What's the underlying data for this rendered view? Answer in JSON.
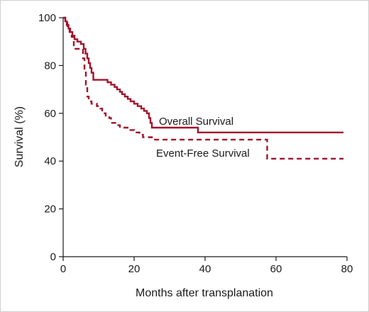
{
  "chart_data": {
    "type": "line",
    "title": "",
    "xlabel": "Months after transplanation",
    "ylabel": "Survival (%)",
    "xlim": [
      0,
      80
    ],
    "ylim": [
      0,
      100
    ],
    "xticks": [
      0,
      20,
      40,
      60,
      80
    ],
    "yticks": [
      0,
      20,
      40,
      60,
      80,
      100
    ],
    "grid": false,
    "legend": "none",
    "series": [
      {
        "name": "Overall Survival",
        "style": "solid",
        "color": "#a0142c",
        "points": [
          [
            0,
            100
          ],
          [
            0.6,
            98.5
          ],
          [
            1.0,
            97
          ],
          [
            1.5,
            95.5
          ],
          [
            2.0,
            94
          ],
          [
            2.6,
            92.5
          ],
          [
            3.2,
            91
          ],
          [
            4.0,
            90
          ],
          [
            5.0,
            89
          ],
          [
            5.8,
            87
          ],
          [
            6.3,
            85
          ],
          [
            6.8,
            83
          ],
          [
            7.2,
            81
          ],
          [
            7.6,
            79
          ],
          [
            8.0,
            77
          ],
          [
            8.5,
            74
          ],
          [
            12.0,
            74
          ],
          [
            12.5,
            73
          ],
          [
            13.5,
            72
          ],
          [
            14.5,
            71
          ],
          [
            15.2,
            70
          ],
          [
            16.0,
            69
          ],
          [
            16.6,
            68
          ],
          [
            17.4,
            67
          ],
          [
            18.2,
            66
          ],
          [
            19.0,
            65
          ],
          [
            20.0,
            64
          ],
          [
            21.0,
            63
          ],
          [
            22.0,
            62
          ],
          [
            22.8,
            61
          ],
          [
            23.6,
            60
          ],
          [
            24.2,
            58
          ],
          [
            24.6,
            56
          ],
          [
            25.0,
            54
          ],
          [
            38.0,
            54
          ],
          [
            38.0,
            52
          ],
          [
            79.0,
            52
          ]
        ]
      },
      {
        "name": "Event-Free Survival",
        "style": "dashed",
        "color": "#a0142c",
        "points": [
          [
            0,
            100
          ],
          [
            0.6,
            98
          ],
          [
            1.2,
            96
          ],
          [
            1.8,
            94
          ],
          [
            2.4,
            92
          ],
          [
            3.0,
            87
          ],
          [
            5.2,
            87
          ],
          [
            5.6,
            83
          ],
          [
            6.0,
            78
          ],
          [
            6.4,
            72
          ],
          [
            6.8,
            67
          ],
          [
            7.2,
            65
          ],
          [
            8.0,
            64
          ],
          [
            9.5,
            63
          ],
          [
            10.5,
            62
          ],
          [
            11.0,
            60
          ],
          [
            12.0,
            59
          ],
          [
            13.0,
            58
          ],
          [
            13.5,
            56
          ],
          [
            15.0,
            55
          ],
          [
            16.0,
            54
          ],
          [
            18.5,
            53
          ],
          [
            20.0,
            52
          ],
          [
            21.5,
            51
          ],
          [
            22.5,
            50
          ],
          [
            25.0,
            49
          ],
          [
            57.0,
            49
          ],
          [
            57.5,
            41
          ],
          [
            79.0,
            41
          ]
        ]
      }
    ]
  }
}
